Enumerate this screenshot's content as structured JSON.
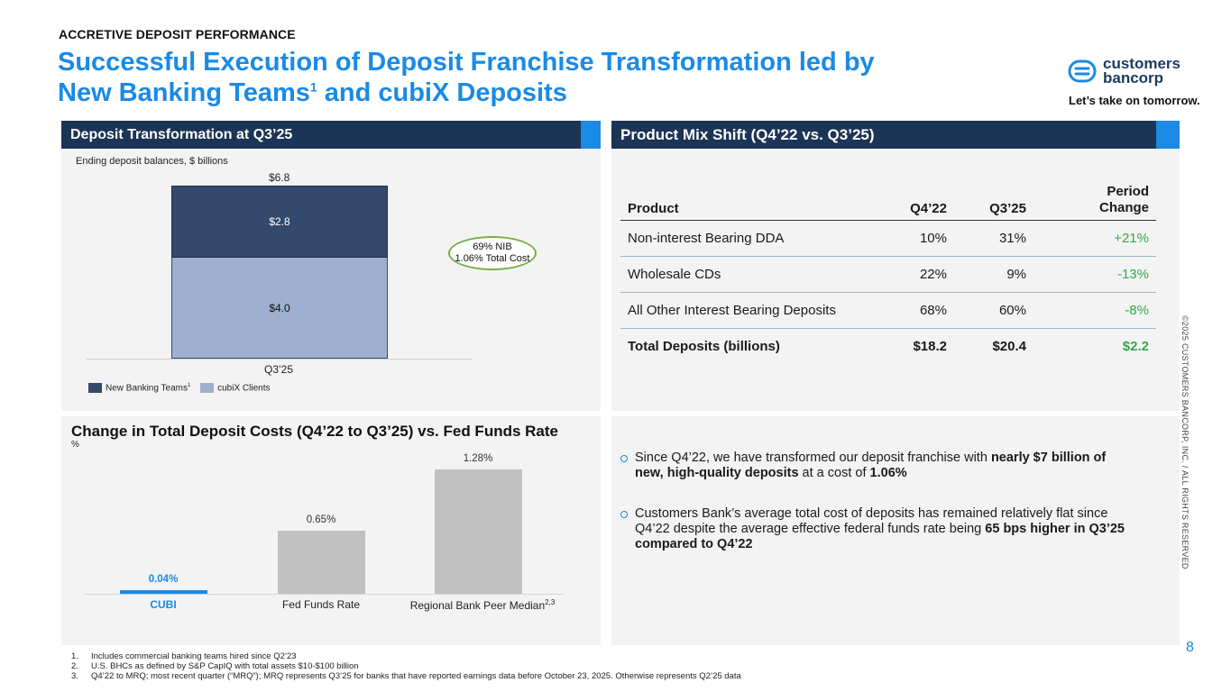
{
  "header": {
    "eyebrow": "ACCRETIVE DEPOSIT PERFORMANCE",
    "title_line1": "Successful Execution of Deposit Franchise Transformation led by",
    "title_line2_a": "New Banking Teams",
    "title_line2_sup": "1",
    "title_line2_b": " and cubiX Deposits"
  },
  "logo": {
    "name_line1": "customers",
    "name_line2": "bancorp",
    "tagline": "Let’s take on tomorrow.",
    "icon": "customers-bancorp-logo-icon"
  },
  "deposit_panel": {
    "header": "Deposit Transformation at Q3’25",
    "subtitle": "Ending deposit balances, $ billions",
    "total_label": "$6.8",
    "top_segment_label": "$2.8",
    "bottom_segment_label": "$4.0",
    "category_label": "Q3’25",
    "legend_new": "New Banking Teams",
    "legend_new_sup": "1",
    "legend_cubix": "cubiX Clients",
    "callout_line1": "69% NIB",
    "callout_line2": "1.06% Total Cost",
    "colors": {
      "new_banking": "#34496b",
      "cubix": "#9eb0cf"
    }
  },
  "chart_data": [
    {
      "type": "bar",
      "title": "Deposit Transformation at Q3’25",
      "ylabel": "Ending deposit balances, $ billions",
      "categories": [
        "Q3’25"
      ],
      "stacked": true,
      "series": [
        {
          "name": "cubiX Clients",
          "values": [
            4.0
          ]
        },
        {
          "name": "New Banking Teams",
          "values": [
            2.8
          ]
        }
      ],
      "total": [
        6.8
      ]
    },
    {
      "type": "bar",
      "title": "Change in Total Deposit Costs (Q4’22 to Q3’25) vs. Fed Funds Rate",
      "ylabel": "%",
      "categories": [
        "CUBI",
        "Fed Funds Rate",
        "Regional Bank Peer Median"
      ],
      "values": [
        0.04,
        0.65,
        1.28
      ],
      "value_labels": [
        "0.04%",
        "0.65%",
        "1.28%"
      ],
      "colors": [
        "#1a8ae5",
        "#c0c0c0",
        "#c0c0c0"
      ]
    }
  ],
  "mix_panel": {
    "header": "Product Mix Shift (Q4’22 vs. Q3’25)",
    "columns": [
      "Product",
      "Q4’22",
      "Q3’25",
      "Period Change"
    ],
    "rows": [
      {
        "product": "Non-interest Bearing DDA",
        "q4_22": "10%",
        "q3_25": "31%",
        "change": "+21%"
      },
      {
        "product": "Wholesale CDs",
        "q4_22": "22%",
        "q3_25": "9%",
        "change": "-13%"
      },
      {
        "product": "All Other Interest Bearing Deposits",
        "q4_22": "68%",
        "q3_25": "60%",
        "change": "-8%"
      },
      {
        "product": "Total Deposits (billions)",
        "q4_22": "$18.2",
        "q3_25": "$20.4",
        "change": "$2.2"
      }
    ]
  },
  "cost_panel": {
    "title": "Change in Total Deposit Costs (Q4’22 to Q3’25) vs. Fed Funds Rate",
    "unit": "%",
    "cat3_sup": "2,3"
  },
  "bullets": {
    "b1_a": "Since Q4’22, we have transformed our deposit franchise with ",
    "b1_bold1": "nearly $7 billion of new, high-quality deposits",
    "b1_b": " at a cost of ",
    "b1_bold2": "1.06%",
    "b2_a": "Customers Bank’s average total cost of deposits has remained relatively flat since Q4’22 despite the average effective federal funds rate being ",
    "b2_bold": "65 bps higher in Q3’25 compared to Q4’22"
  },
  "footnotes": [
    {
      "n": "1.",
      "text": "Includes commercial banking teams hired since Q2’23"
    },
    {
      "n": "2.",
      "text": "U.S. BHCs as defined by S&P CapIQ with total assets $10-$100 billion"
    },
    {
      "n": "3.",
      "text": "Q4’22 to MRQ; most recent quarter (“MRQ”); MRQ represents Q3’25 for banks that have reported earnings data before October 23, 2025. Otherwise represents Q2’25 data"
    }
  ],
  "side_text": "©2025 CUSTOMERS BANCORP, INC. / ALL RIGHTS RESERVED",
  "page_number": "8"
}
